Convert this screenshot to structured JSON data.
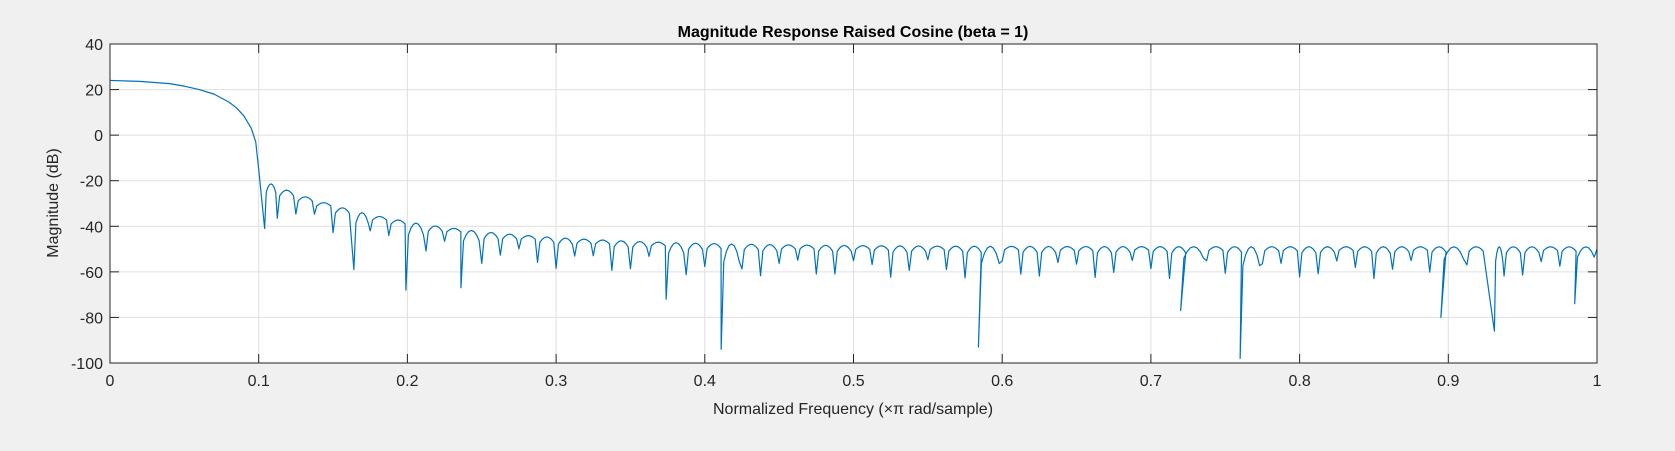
{
  "chart_data": {
    "type": "line",
    "title": "Magnitude Response Raised Cosine (beta = 1)",
    "xlabel": "Normalized Frequency  (×π rad/sample)",
    "ylabel": "Magnitude (dB)",
    "xlim": [
      0,
      1
    ],
    "ylim": [
      -100,
      40
    ],
    "x_ticks": [
      "0",
      "0.1",
      "0.2",
      "0.3",
      "0.4",
      "0.5",
      "0.6",
      "0.7",
      "0.8",
      "0.9",
      "1"
    ],
    "y_ticks": [
      "40",
      "20",
      "0",
      "-20",
      "-40",
      "-60",
      "-80",
      "-100"
    ],
    "grid": true,
    "line_color": "#0072bd",
    "series": [
      {
        "passband": {
          "x": [
            0,
            0.02,
            0.04,
            0.05,
            0.06,
            0.07,
            0.08,
            0.085,
            0.09,
            0.095,
            0.098,
            0.1
          ],
          "y": [
            24,
            23.6,
            22.6,
            21.5,
            20,
            18,
            14.5,
            12,
            8.5,
            3,
            -3,
            -15
          ]
        },
        "stopband_lobes": {
          "first_lobe_x": 0.1,
          "lobe_spacing": 0.0125,
          "peak_level_start": -19,
          "peak_level_end": -49,
          "null_level": -58,
          "deep_nulls": [
            {
              "x": 0.104,
              "y": -41
            },
            {
              "x": 0.164,
              "y": -59
            },
            {
              "x": 0.199,
              "y": -68
            },
            {
              "x": 0.236,
              "y": -67
            },
            {
              "x": 0.374,
              "y": -72
            },
            {
              "x": 0.411,
              "y": -94
            },
            {
              "x": 0.584,
              "y": -93
            },
            {
              "x": 0.72,
              "y": -77
            },
            {
              "x": 0.76,
              "y": -98
            },
            {
              "x": 0.895,
              "y": -80
            },
            {
              "x": 0.931,
              "y": -86
            },
            {
              "x": 0.985,
              "y": -74
            }
          ]
        },
        "end_value": {
          "x": 1.0,
          "y": -50
        }
      }
    ]
  }
}
